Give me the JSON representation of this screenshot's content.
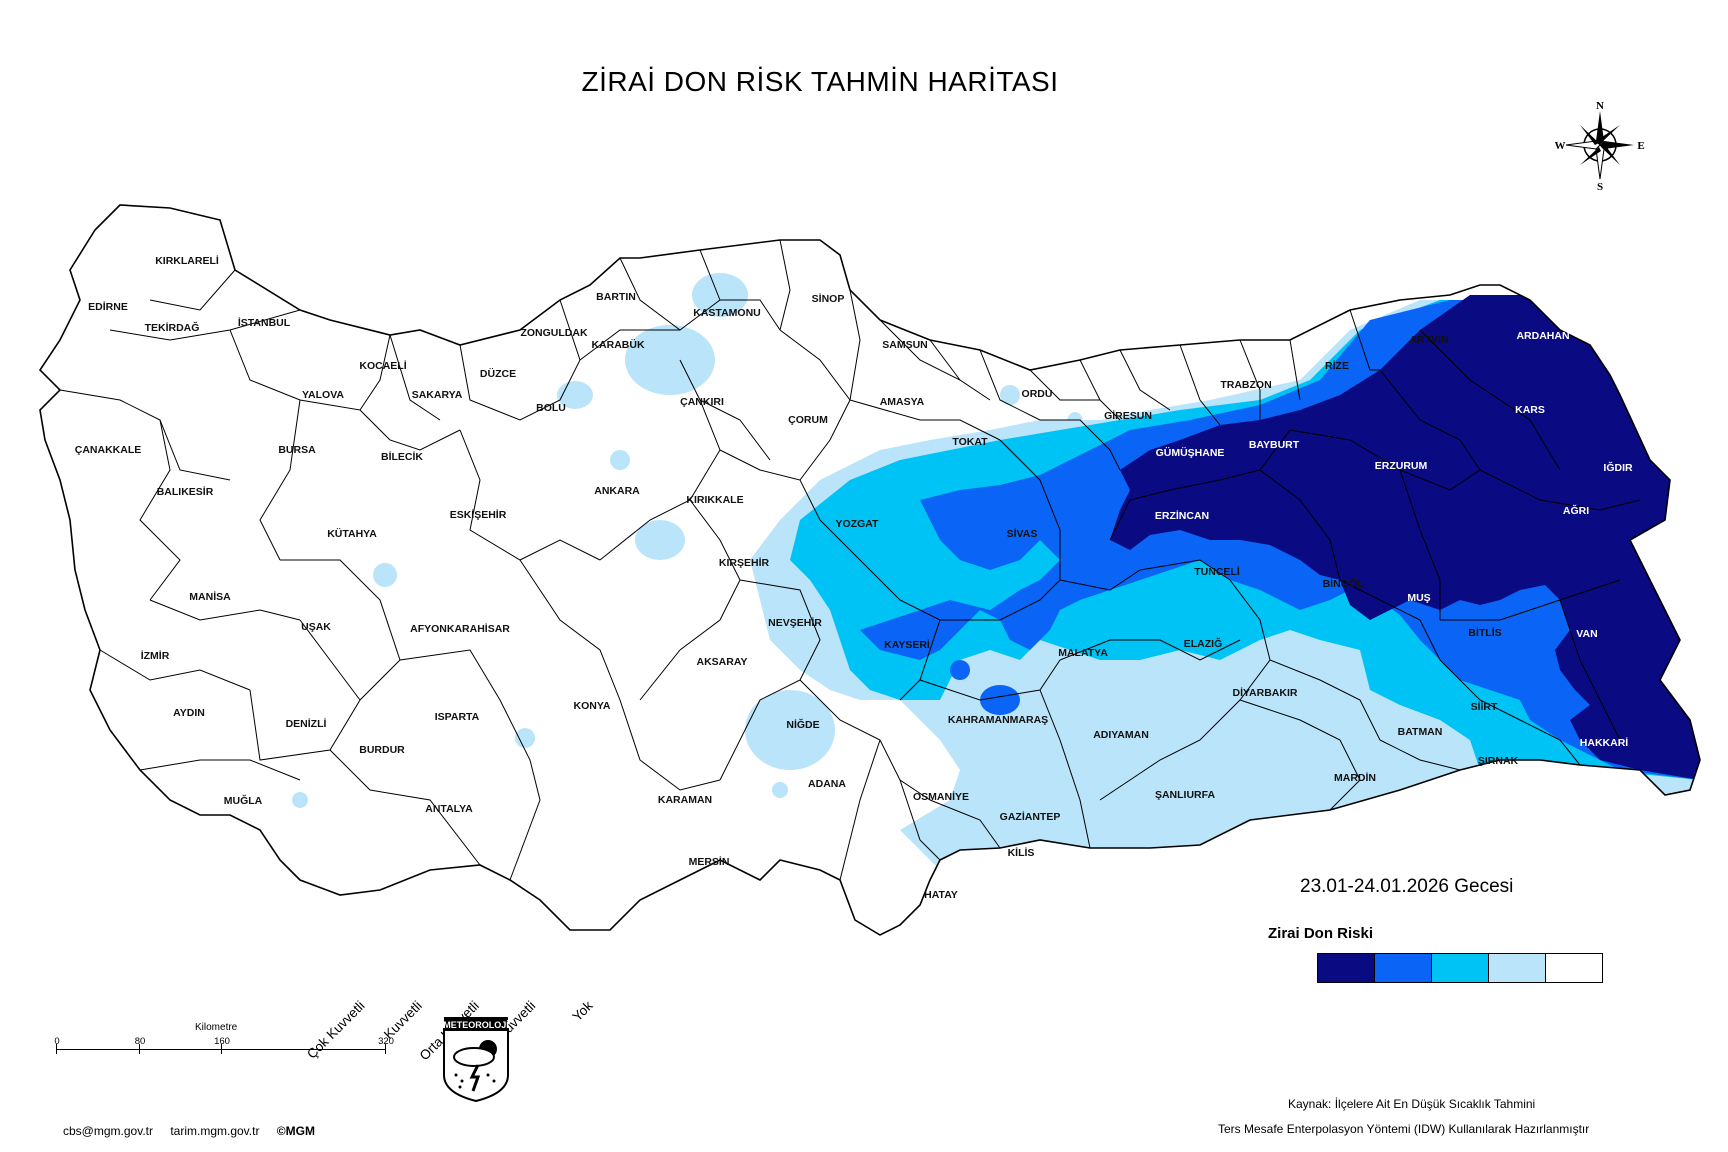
{
  "title": "ZİRAİ DON RİSK TAHMİN HARİTASI",
  "date_label": "23.01-24.01.2026 Gecesi",
  "compass": {
    "n": "N",
    "e": "E",
    "s": "S",
    "w": "W"
  },
  "legend": {
    "title": "Zirai Don Riski",
    "items": [
      {
        "label": "Çok Kuvvetli",
        "color": "#0a0a82"
      },
      {
        "label": "Kuvvetli",
        "color": "#0a64f5"
      },
      {
        "label": "Orta Kuvvetli",
        "color": "#00c3f5"
      },
      {
        "label": "Hafif Kuvvetli",
        "color": "#b9e4fa"
      },
      {
        "label": "Yok",
        "color": "#ffffff"
      }
    ]
  },
  "scale": {
    "title": "Kilometre",
    "ticks": [
      "0",
      "80",
      "160",
      "320"
    ]
  },
  "logo_text": "METEOROLOJİ",
  "source": {
    "line1": "Kaynak: İlçelere Ait En Düşük Sıcaklık Tahmini",
    "line2": "Ters Mesafe Enterpolasyon Yöntemi (IDW) Kullanılarak Hazırlanmıştır"
  },
  "footer": [
    "cbs@mgm.gov.tr",
    "tarim.mgm.gov.tr",
    "©MGM"
  ],
  "provinces": {
    "western": [
      "KIRKLARELİ",
      "EDİRNE",
      "TEKİRDAĞ",
      "İSTANBUL",
      "ÇANAKKALE",
      "BALIKESİR",
      "YALOVA",
      "KOCAELİ",
      "SAKARYA",
      "DÜZCE",
      "BOLU",
      "ZONGULDAK",
      "BARTIN",
      "KARABÜK",
      "KASTAMONU",
      "SİNOP",
      "BURSA",
      "BİLECİK",
      "ESKİŞEHİR",
      "KÜTAHYA",
      "MANİSA",
      "UŞAK",
      "İZMİR",
      "AYDIN",
      "DENİZLİ",
      "MUĞLA",
      "AFYONKARAHİSAR",
      "ISPARTA",
      "BURDUR",
      "ANTALYA",
      "KONYA",
      "KARAMAN",
      "MERSİN",
      "ANKARA",
      "ÇANKIRI",
      "KIRIKKALE",
      "KIRŞEHİR",
      "AKSARAY",
      "NEVŞEHİR",
      "NİĞDE",
      "ADANA",
      "OSMANİYE",
      "HATAY",
      "KİLİS",
      "GAZİANTEP",
      "ÇORUM",
      "AMASYA",
      "SAMSUN",
      "ORDU",
      "TOKAT",
      "YOZGAT",
      "KAYSERİ",
      "SİVAS",
      "KAHRAMANMARAŞ",
      "MALATYA",
      "ADIYAMAN",
      "ŞANLIURFA",
      "GİRESUN",
      "TRABZON",
      "RİZE",
      "ARTVİN",
      "ELAZIĞ",
      "TUNCELİ",
      "BİNGÖL",
      "DİYARBAKIR",
      "MARDİN",
      "BATMAN",
      "SİİRT",
      "ŞIRNAK",
      "BİTLİS"
    ],
    "eastern_dark": [
      "ARDAHAN",
      "KARS",
      "IĞDIR",
      "AĞRI",
      "ERZURUM",
      "ERZİNCAN",
      "BAYBURT",
      "GÜMÜŞHANE",
      "MUŞ",
      "VAN",
      "HAKKARİ"
    ]
  }
}
